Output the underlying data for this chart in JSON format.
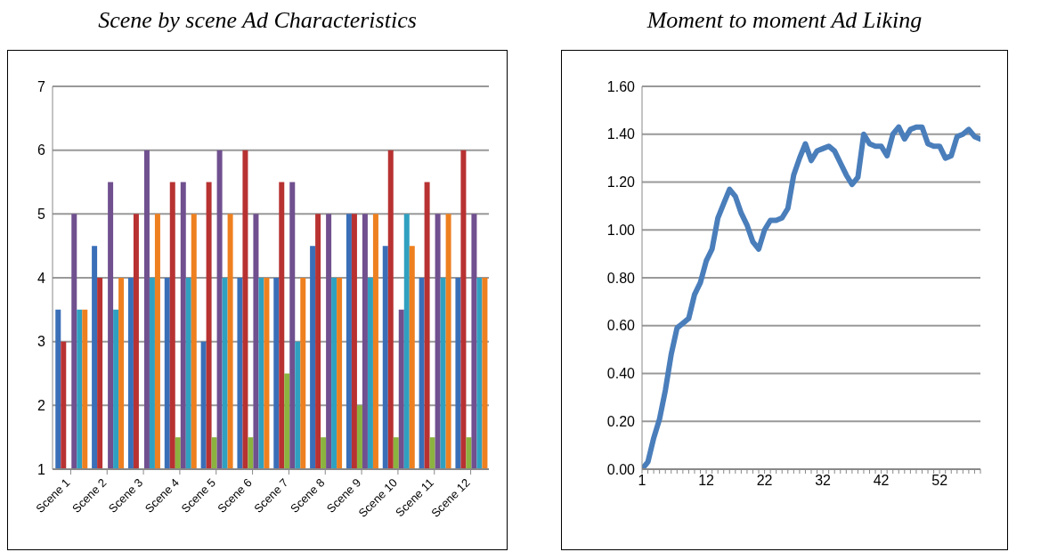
{
  "chart_data": [
    {
      "type": "bar",
      "title": "Scene by scene Ad Characteristics",
      "categories": [
        "Scene 1",
        "Scene 2",
        "Scene 3",
        "Scene 4",
        "Scene 5",
        "Scene 6",
        "Scene 7",
        "Scene 8",
        "Scene 9",
        "Scene 10",
        "Scene 11",
        "Scene 12"
      ],
      "series": [
        {
          "color": "#3a6fb8",
          "values": [
            3.5,
            4.5,
            4,
            4,
            3,
            4,
            4,
            4.5,
            5,
            4.5,
            4,
            4
          ]
        },
        {
          "color": "#b83232",
          "values": [
            3,
            4,
            5,
            5.5,
            5.5,
            6,
            5.5,
            5,
            5,
            6,
            5.5,
            6
          ]
        },
        {
          "color": "#8bb33f",
          "values": [
            1,
            1,
            1,
            1.5,
            1.5,
            1.5,
            2.5,
            1.5,
            2,
            1.5,
            1.5,
            1.5
          ]
        },
        {
          "color": "#70508f",
          "values": [
            5,
            5.5,
            6,
            5.5,
            6,
            5,
            5.5,
            5,
            5,
            3.5,
            5,
            5
          ]
        },
        {
          "color": "#30a0c0",
          "values": [
            3.5,
            3.5,
            4,
            4,
            4,
            4,
            3,
            4,
            4,
            5,
            4,
            4
          ]
        },
        {
          "color": "#ee8020",
          "values": [
            3.5,
            4,
            5,
            5,
            5,
            4,
            4,
            4,
            5,
            4.5,
            5,
            4
          ]
        }
      ],
      "ylim": [
        1,
        7
      ],
      "yticks": [
        1,
        2,
        3,
        4,
        5,
        6,
        7
      ],
      "grid": "y",
      "legend": false
    },
    {
      "type": "line",
      "title": "Moment to moment Ad Liking",
      "x": [
        1,
        2,
        3,
        4,
        5,
        6,
        7,
        8,
        9,
        10,
        11,
        12,
        13,
        14,
        15,
        16,
        17,
        18,
        19,
        20,
        21,
        22,
        23,
        24,
        25,
        26,
        27,
        28,
        29,
        30,
        31,
        32,
        33,
        34,
        35,
        36,
        37,
        38,
        39,
        40,
        41,
        42,
        43,
        44,
        45,
        46,
        47,
        48,
        49,
        50,
        51,
        52,
        53,
        54,
        55,
        56,
        57,
        58,
        59
      ],
      "series": [
        {
          "color": "#4a7ebb",
          "values": [
            0.0,
            0.03,
            0.13,
            0.21,
            0.33,
            0.48,
            0.59,
            0.61,
            0.63,
            0.73,
            0.78,
            0.87,
            0.92,
            1.05,
            1.11,
            1.17,
            1.14,
            1.07,
            1.02,
            0.95,
            0.92,
            1.0,
            1.04,
            1.04,
            1.05,
            1.09,
            1.23,
            1.3,
            1.36,
            1.29,
            1.33,
            1.34,
            1.35,
            1.33,
            1.28,
            1.23,
            1.19,
            1.22,
            1.4,
            1.36,
            1.35,
            1.35,
            1.31,
            1.4,
            1.43,
            1.38,
            1.42,
            1.43,
            1.43,
            1.36,
            1.35,
            1.35,
            1.3,
            1.31,
            1.39,
            1.4,
            1.42,
            1.39,
            1.38
          ]
        }
      ],
      "xlim": [
        1,
        59
      ],
      "xticks": [
        1,
        {
          "value": 2,
          "label": null
        },
        {
          "value": 3,
          "label": null
        },
        {
          "value": 4,
          "label": null
        },
        {
          "value": 5,
          "label": null
        },
        {
          "value": 6,
          "label": null
        },
        {
          "value": 7,
          "label": null
        },
        {
          "value": 8,
          "label": null
        },
        {
          "value": 9,
          "label": null
        },
        {
          "value": 10,
          "label": null
        },
        {
          "value": 11,
          "label": null
        },
        12,
        {
          "value": 13,
          "label": null
        },
        {
          "value": 14,
          "label": null
        },
        {
          "value": 15,
          "label": null
        },
        {
          "value": 16,
          "label": null
        },
        {
          "value": 17,
          "label": null
        },
        {
          "value": 18,
          "label": null
        },
        {
          "value": 19,
          "label": null
        },
        {
          "value": 20,
          "label": null
        },
        {
          "value": 21,
          "label": null
        },
        22,
        {
          "value": 23,
          "label": null
        },
        {
          "value": 24,
          "label": null
        },
        {
          "value": 25,
          "label": null
        },
        {
          "value": 26,
          "label": null
        },
        {
          "value": 27,
          "label": null
        },
        {
          "value": 28,
          "label": null
        },
        {
          "value": 29,
          "label": null
        },
        {
          "value": 30,
          "label": null
        },
        {
          "value": 31,
          "label": null
        },
        32,
        {
          "value": 33,
          "label": null
        },
        {
          "value": 34,
          "label": null
        },
        {
          "value": 35,
          "label": null
        },
        {
          "value": 36,
          "label": null
        },
        {
          "value": 37,
          "label": null
        },
        {
          "value": 38,
          "label": null
        },
        {
          "value": 39,
          "label": null
        },
        {
          "value": 40,
          "label": null
        },
        {
          "value": 41,
          "label": null
        },
        42,
        {
          "value": 43,
          "label": null
        },
        {
          "value": 44,
          "label": null
        },
        {
          "value": 45,
          "label": null
        },
        {
          "value": 46,
          "label": null
        },
        {
          "value": 47,
          "label": null
        },
        {
          "value": 48,
          "label": null
        },
        {
          "value": 49,
          "label": null
        },
        {
          "value": 50,
          "label": null
        },
        {
          "value": 51,
          "label": null
        },
        52,
        {
          "value": 53,
          "label": null
        },
        {
          "value": 54,
          "label": null
        },
        {
          "value": 55,
          "label": null
        },
        {
          "value": 56,
          "label": null
        },
        {
          "value": 57,
          "label": null
        },
        {
          "value": 58,
          "label": null
        },
        {
          "value": 59,
          "label": null
        }
      ],
      "ylim": [
        0,
        1.6
      ],
      "yticks": [
        {
          "value": 0,
          "label": "0.00"
        },
        {
          "value": 0.2,
          "label": "0.20"
        },
        {
          "value": 0.4,
          "label": "0.40"
        },
        {
          "value": 0.6,
          "label": "0.60"
        },
        {
          "value": 0.8,
          "label": "0.80"
        },
        {
          "value": 1,
          "label": "1.00"
        },
        {
          "value": 1.2,
          "label": "1.20"
        },
        {
          "value": 1.4,
          "label": "1.40"
        },
        {
          "value": 1.6,
          "label": "1.60"
        }
      ],
      "grid": "y",
      "legend": false,
      "marker": "none",
      "line_style": "solid"
    }
  ]
}
